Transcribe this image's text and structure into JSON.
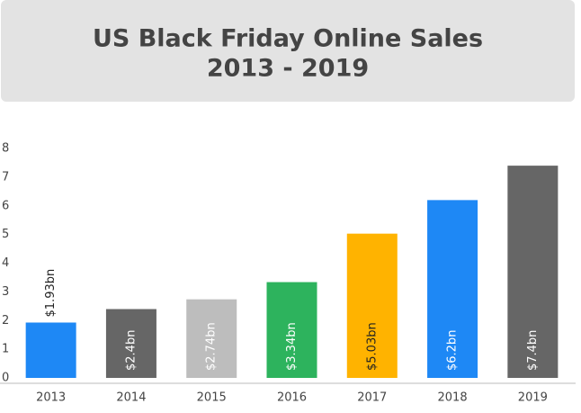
{
  "chart_data": {
    "type": "bar",
    "title": [
      "US Black Friday Online Sales",
      "2013 - 2019"
    ],
    "categories": [
      "2013",
      "2014",
      "2015",
      "2016",
      "2017",
      "2018",
      "2019"
    ],
    "values": [
      1.93,
      2.4,
      2.74,
      3.34,
      5.03,
      6.2,
      7.4
    ],
    "value_labels": [
      "$1.93bn",
      "$2.4bn",
      "$2.74bn",
      "$3.34bn",
      "$5.03bn",
      "$6.2bn",
      "$7.4bn"
    ],
    "colors": [
      "#1e88f5",
      "#666666",
      "#bdbdbd",
      "#2db35d",
      "#ffb300",
      "#1e88f5",
      "#666666"
    ],
    "ylim": [
      0,
      8
    ],
    "yticks": [
      0,
      1,
      2,
      3,
      4,
      5,
      6,
      7,
      8
    ],
    "grid": false
  }
}
